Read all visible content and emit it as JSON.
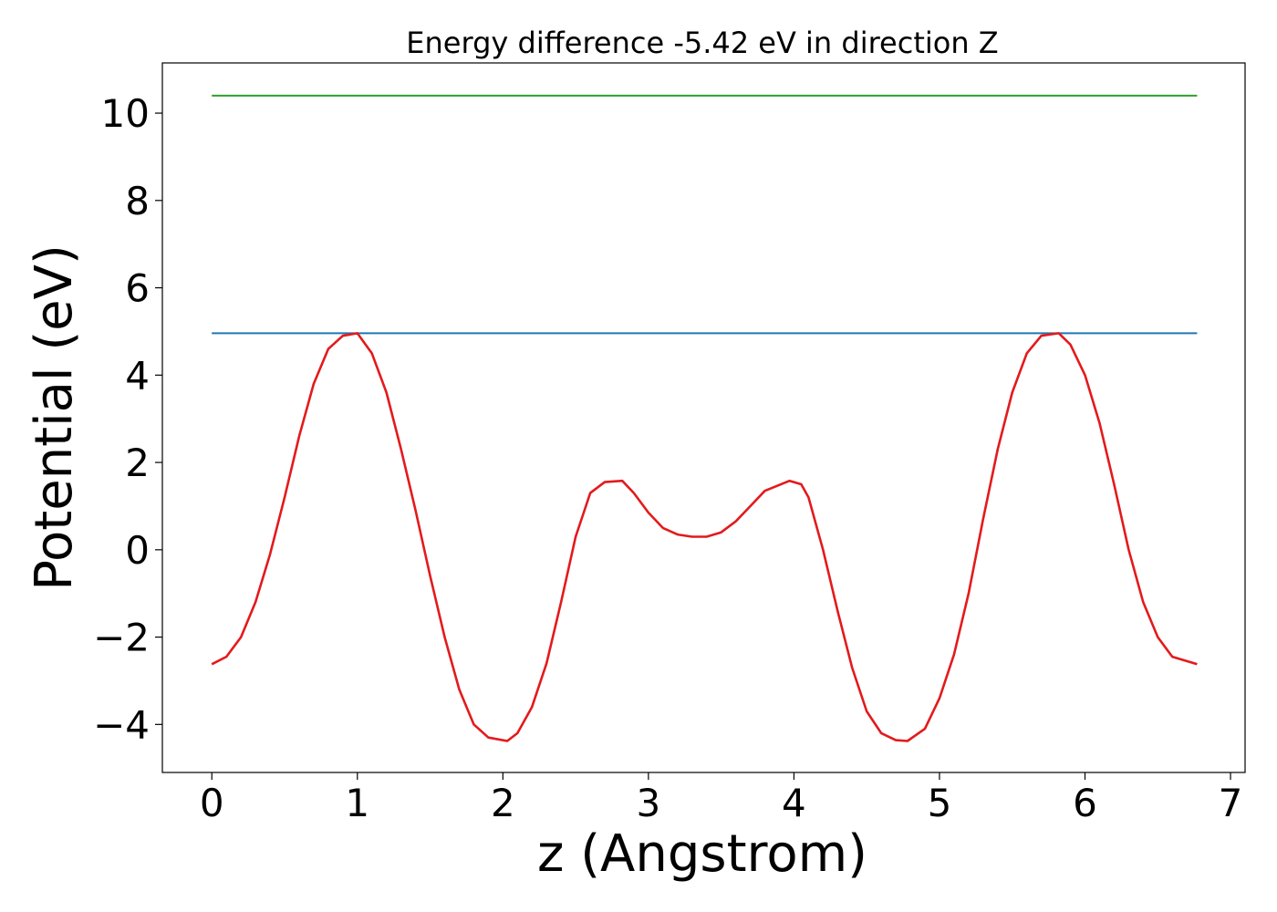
{
  "chart_data": {
    "type": "line",
    "title": "Energy difference -5.42 eV in direction Z",
    "xlabel": "z (Angstrom)",
    "ylabel": "Potential (eV)",
    "xlim": [
      -0.34,
      7.1
    ],
    "ylim": [
      -5.1,
      11.15
    ],
    "xticks": [
      0,
      1,
      2,
      3,
      4,
      5,
      6,
      7
    ],
    "yticks": [
      -4,
      -2,
      0,
      2,
      4,
      6,
      8,
      10
    ],
    "xtick_labels": [
      "0",
      "1",
      "2",
      "3",
      "4",
      "5",
      "6",
      "7"
    ],
    "ytick_labels": [
      "−4",
      "−2",
      "0",
      "2",
      "4",
      "6",
      "8",
      "10"
    ],
    "grid": false,
    "legend": "none",
    "series": [
      {
        "color": "#2ca02c",
        "x": [
          0,
          6.77
        ],
        "y": [
          10.4,
          10.4
        ]
      },
      {
        "color": "#1f77b4",
        "x": [
          0,
          6.77
        ],
        "y": [
          4.96,
          4.96
        ]
      },
      {
        "color": "#e31a1c",
        "x": [
          0,
          0.1,
          0.2,
          0.3,
          0.4,
          0.5,
          0.6,
          0.7,
          0.8,
          0.9,
          1.0,
          1.1,
          1.2,
          1.3,
          1.4,
          1.5,
          1.6,
          1.7,
          1.8,
          1.9,
          2.03,
          2.1,
          2.2,
          2.3,
          2.4,
          2.5,
          2.6,
          2.7,
          2.82,
          2.9,
          3.0,
          3.1,
          3.2,
          3.3,
          3.4,
          3.5,
          3.6,
          3.7,
          3.8,
          3.97,
          4.05,
          4.1,
          4.2,
          4.3,
          4.4,
          4.5,
          4.6,
          4.7,
          4.78,
          4.9,
          5.0,
          5.1,
          5.2,
          5.3,
          5.4,
          5.5,
          5.6,
          5.7,
          5.82,
          5.9,
          6.0,
          6.1,
          6.2,
          6.3,
          6.4,
          6.5,
          6.6,
          6.77
        ],
        "y": [
          -2.62,
          -2.45,
          -2.0,
          -1.2,
          -0.1,
          1.2,
          2.6,
          3.8,
          4.6,
          4.9,
          4.96,
          4.5,
          3.6,
          2.3,
          0.9,
          -0.6,
          -2.0,
          -3.2,
          -4.0,
          -4.3,
          -4.38,
          -4.2,
          -3.6,
          -2.6,
          -1.2,
          0.3,
          1.3,
          1.55,
          1.58,
          1.3,
          0.85,
          0.5,
          0.35,
          0.3,
          0.3,
          0.4,
          0.65,
          1.0,
          1.35,
          1.58,
          1.5,
          1.2,
          0.0,
          -1.4,
          -2.7,
          -3.7,
          -4.2,
          -4.36,
          -4.38,
          -4.1,
          -3.4,
          -2.4,
          -1.0,
          0.7,
          2.3,
          3.6,
          4.5,
          4.9,
          4.96,
          4.7,
          4.0,
          2.9,
          1.5,
          0.0,
          -1.2,
          -2.0,
          -2.45,
          -2.62
        ]
      }
    ]
  }
}
